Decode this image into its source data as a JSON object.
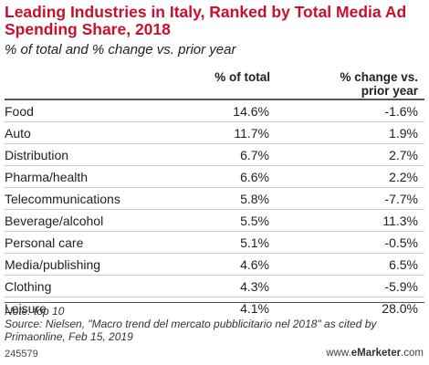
{
  "title": "Leading Industries in Italy, Ranked by Total Media Ad Spending Share, 2018",
  "subtitle": "% of total and % change vs. prior year",
  "columns": {
    "total": "% of total",
    "change_line1": "% change vs.",
    "change_line2": "prior year"
  },
  "rows": [
    {
      "name": "Food",
      "total": "14.6%",
      "change": "-1.6%"
    },
    {
      "name": "Auto",
      "total": "11.7%",
      "change": "1.9%"
    },
    {
      "name": "Distribution",
      "total": "6.7%",
      "change": "2.7%"
    },
    {
      "name": "Pharma/health",
      "total": "6.6%",
      "change": "2.2%"
    },
    {
      "name": "Telecommunications",
      "total": "5.8%",
      "change": "-7.7%"
    },
    {
      "name": "Beverage/alcohol",
      "total": "5.5%",
      "change": "11.3%"
    },
    {
      "name": "Personal care",
      "total": "5.1%",
      "change": "-0.5%"
    },
    {
      "name": "Media/publishing",
      "total": "4.6%",
      "change": "6.5%"
    },
    {
      "name": "Clothing",
      "total": "4.3%",
      "change": "-5.9%"
    },
    {
      "name": "Leisure",
      "total": "4.1%",
      "change": "28.0%"
    }
  ],
  "note": "Note: top 10",
  "source": "Source: Nielsen, \"Macro trend del mercato pubblicitario nel 2018\" as cited by Primaonline, Feb 15, 2019",
  "chart_id": "245579",
  "brand": {
    "prefix": "www.",
    "highlight": "e",
    "rest": "Marketer",
    "suffix": ".com"
  },
  "colors": {
    "title": "#c8102e",
    "text": "#222222",
    "rule": "#555555",
    "row_divider": "#cfcfcf"
  },
  "chart_data": {
    "type": "table",
    "title": "Leading Industries in Italy, Ranked by Total Media Ad Spending Share, 2018",
    "subtitle": "% of total and % change vs. prior year",
    "columns": [
      "",
      "% of total",
      "% change vs. prior year"
    ],
    "categories": [
      "Food",
      "Auto",
      "Distribution",
      "Pharma/health",
      "Telecommunications",
      "Beverage/alcohol",
      "Personal care",
      "Media/publishing",
      "Clothing",
      "Leisure"
    ],
    "series": [
      {
        "name": "% of total",
        "values": [
          14.6,
          11.7,
          6.7,
          6.6,
          5.8,
          5.5,
          5.1,
          4.6,
          4.3,
          4.1
        ]
      },
      {
        "name": "% change vs. prior year",
        "values": [
          -1.6,
          1.9,
          2.7,
          2.2,
          -7.7,
          11.3,
          -0.5,
          6.5,
          -5.9,
          28.0
        ]
      }
    ]
  }
}
